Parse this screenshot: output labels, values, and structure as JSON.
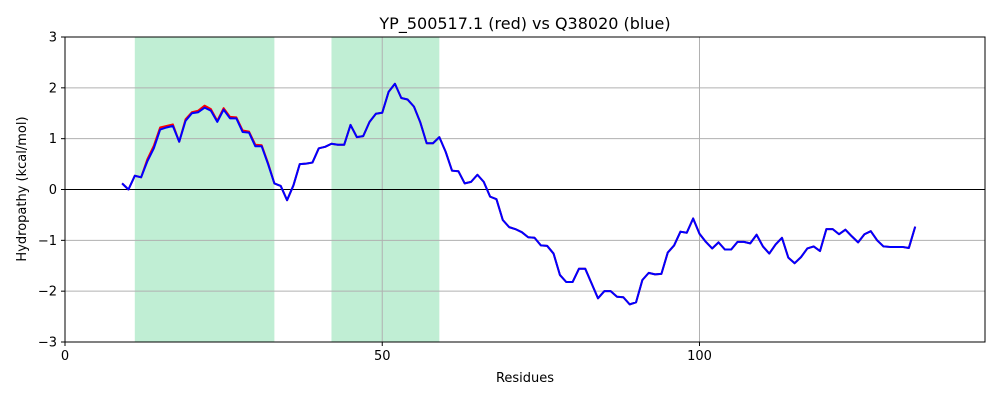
{
  "chart_data": {
    "type": "line",
    "title": "YP_500517.1 (red) vs Q38020 (blue)",
    "xlabel": "Residues",
    "ylabel": "Hydropathy (kcal/mol)",
    "xlim": [
      0,
      145
    ],
    "ylim": [
      -3,
      3
    ],
    "xticks": [
      0,
      50,
      100
    ],
    "yticks": [
      -3,
      -2,
      -1,
      0,
      1,
      2,
      3
    ],
    "grid": true,
    "zero_line": true,
    "shaded_regions": [
      {
        "x": [
          11,
          33
        ],
        "color": "#c0eed4"
      },
      {
        "x": [
          42,
          59
        ],
        "color": "#c0eed4"
      }
    ],
    "series": [
      {
        "name": "YP_500517.1",
        "color": "#ff0000",
        "x": [
          9,
          10,
          11,
          12,
          13,
          14,
          15,
          16,
          17,
          18,
          19,
          20,
          21,
          22,
          23,
          24,
          25,
          26,
          27,
          28,
          29,
          30,
          31,
          32,
          33,
          34,
          35,
          36,
          37,
          38,
          39,
          40,
          41,
          42,
          43,
          44,
          45,
          46,
          47,
          48,
          49,
          50,
          51,
          52,
          53,
          54,
          55,
          56,
          57,
          58,
          59,
          60,
          61,
          62,
          63,
          64,
          65,
          66,
          67,
          68,
          69,
          70,
          71,
          72,
          73,
          74,
          75,
          76,
          77,
          78,
          79,
          80,
          81,
          82,
          83,
          84,
          85,
          86,
          87,
          88,
          89,
          90,
          91,
          92,
          93,
          94,
          95,
          96,
          97,
          98,
          99,
          100,
          101,
          102,
          103,
          104,
          105,
          106,
          107,
          108,
          109,
          110,
          111,
          112,
          113,
          114,
          115,
          116,
          117,
          118,
          119,
          120,
          121,
          122,
          123,
          124,
          125,
          126,
          127,
          128,
          129,
          130,
          131,
          132,
          133,
          134
        ],
        "values": [
          0.12,
          0.0,
          0.27,
          0.24,
          0.6,
          0.86,
          1.22,
          1.25,
          1.28,
          0.94,
          1.38,
          1.52,
          1.55,
          1.65,
          1.58,
          1.35,
          1.6,
          1.43,
          1.42,
          1.16,
          1.14,
          0.88,
          0.87,
          0.52,
          0.12,
          0.07,
          -0.21,
          0.08,
          0.5,
          0.51,
          0.53,
          0.81,
          0.84,
          0.9,
          0.88,
          0.88,
          1.27,
          1.03,
          1.05,
          1.33,
          1.49,
          1.51,
          1.92,
          2.08,
          1.8,
          1.77,
          1.63,
          1.32,
          0.91,
          0.91,
          1.03,
          0.74,
          0.37,
          0.36,
          0.12,
          0.15,
          0.29,
          0.15,
          -0.14,
          -0.19,
          -0.6,
          -0.74,
          -0.78,
          -0.84,
          -0.94,
          -0.95,
          -1.1,
          -1.11,
          -1.26,
          -1.68,
          -1.82,
          -1.82,
          -1.56,
          -1.56,
          -1.85,
          -2.14,
          -2.0,
          -2.0,
          -2.11,
          -2.12,
          -2.26,
          -2.22,
          -1.78,
          -1.64,
          -1.67,
          -1.66,
          -1.24,
          -1.1,
          -0.83,
          -0.85,
          -0.57,
          -0.87,
          -1.03,
          -1.16,
          -1.04,
          -1.18,
          -1.18,
          -1.03,
          -1.03,
          -1.06,
          -0.89,
          -1.12,
          -1.26,
          -1.08,
          -0.95,
          -1.34,
          -1.45,
          -1.33,
          -1.16,
          -1.12,
          -1.21,
          -0.78,
          -0.78,
          -0.88,
          -0.79,
          -0.92,
          -1.04,
          -0.88,
          -0.82,
          -1.0,
          -1.12,
          -1.13,
          -1.13,
          -1.13,
          -1.15,
          -0.73
        ]
      },
      {
        "name": "Q38020",
        "color": "#0000ff",
        "x": [
          9,
          10,
          11,
          12,
          13,
          14,
          15,
          16,
          17,
          18,
          19,
          20,
          21,
          22,
          23,
          24,
          25,
          26,
          27,
          28,
          29,
          30,
          31,
          32,
          33,
          34,
          35,
          36,
          37,
          38,
          39,
          40,
          41,
          42,
          43,
          44,
          45,
          46,
          47,
          48,
          49,
          50,
          51,
          52,
          53,
          54,
          55,
          56,
          57,
          58,
          59,
          60,
          61,
          62,
          63,
          64,
          65,
          66,
          67,
          68,
          69,
          70,
          71,
          72,
          73,
          74,
          75,
          76,
          77,
          78,
          79,
          80,
          81,
          82,
          83,
          84,
          85,
          86,
          87,
          88,
          89,
          90,
          91,
          92,
          93,
          94,
          95,
          96,
          97,
          98,
          99,
          100,
          101,
          102,
          103,
          104,
          105,
          106,
          107,
          108,
          109,
          110,
          111,
          112,
          113,
          114,
          115,
          116,
          117,
          118,
          119,
          120,
          121,
          122,
          123,
          124,
          125,
          126,
          127,
          128,
          129,
          130,
          131,
          132,
          133,
          134
        ],
        "values": [
          0.12,
          0.0,
          0.27,
          0.24,
          0.56,
          0.81,
          1.18,
          1.22,
          1.25,
          0.94,
          1.35,
          1.5,
          1.52,
          1.61,
          1.55,
          1.33,
          1.57,
          1.4,
          1.4,
          1.13,
          1.12,
          0.85,
          0.85,
          0.5,
          0.12,
          0.07,
          -0.21,
          0.08,
          0.5,
          0.51,
          0.53,
          0.81,
          0.84,
          0.9,
          0.88,
          0.88,
          1.27,
          1.03,
          1.05,
          1.33,
          1.49,
          1.51,
          1.92,
          2.08,
          1.8,
          1.77,
          1.63,
          1.32,
          0.91,
          0.91,
          1.03,
          0.74,
          0.37,
          0.36,
          0.12,
          0.15,
          0.29,
          0.15,
          -0.14,
          -0.19,
          -0.6,
          -0.74,
          -0.78,
          -0.84,
          -0.94,
          -0.95,
          -1.1,
          -1.11,
          -1.26,
          -1.68,
          -1.82,
          -1.82,
          -1.56,
          -1.56,
          -1.85,
          -2.14,
          -2.0,
          -2.0,
          -2.11,
          -2.12,
          -2.26,
          -2.22,
          -1.78,
          -1.64,
          -1.67,
          -1.66,
          -1.24,
          -1.1,
          -0.83,
          -0.85,
          -0.57,
          -0.87,
          -1.03,
          -1.16,
          -1.04,
          -1.18,
          -1.18,
          -1.03,
          -1.03,
          -1.06,
          -0.89,
          -1.12,
          -1.26,
          -1.08,
          -0.95,
          -1.34,
          -1.45,
          -1.33,
          -1.16,
          -1.12,
          -1.21,
          -0.78,
          -0.78,
          -0.88,
          -0.79,
          -0.92,
          -1.04,
          -0.88,
          -0.82,
          -1.0,
          -1.12,
          -1.13,
          -1.13,
          -1.13,
          -1.15,
          -0.73
        ]
      }
    ]
  }
}
